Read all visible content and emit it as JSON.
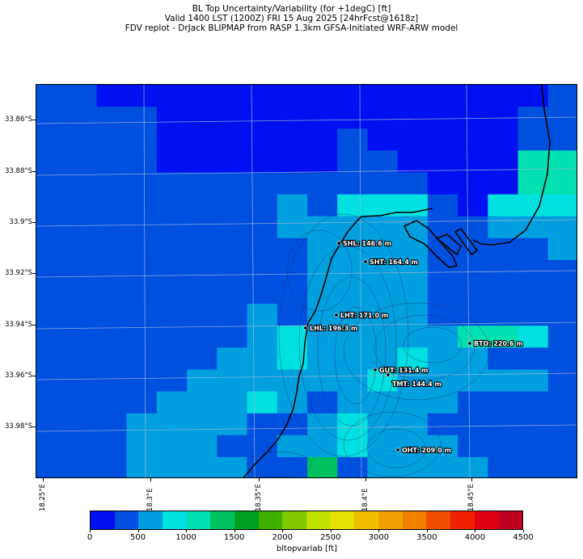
{
  "title": {
    "line1": "BL Top Uncertainty/Variability (for +1degC) [ft]",
    "line2": "Valid 1400 LST (1200Z) FRI 15 Aug 2025 [24hrFcst@1618z]",
    "line3": "FDV replot - DrJack BLIPMAP from RASP 1.3km GFSA-Initiated WRF-ARW model"
  },
  "map": {
    "lat_labels": [
      "33.86°S",
      "33.88°S",
      "33.9°S",
      "33.92°S",
      "33.94°S",
      "33.96°S",
      "33.98°S"
    ],
    "lon_labels": [
      "18.25°E",
      "18.3°E",
      "18.35°E",
      "18.4°E",
      "18.45°E"
    ],
    "locations": [
      {
        "label": "SHL: 146.6 m"
      },
      {
        "label": "SHT: 164.4 m"
      },
      {
        "label": "LHT: 171.0 m"
      },
      {
        "label": "LHL: 196.3 m"
      },
      {
        "label": "BTO: 220.6 m"
      },
      {
        "label": "GUT: 131.4 m"
      },
      {
        "label": "TMT: 144.4 m"
      },
      {
        "label": "OHT: 209.0 m"
      }
    ],
    "grid_ft": [
      [
        250,
        250,
        0,
        0,
        0,
        0,
        0,
        0,
        0,
        0,
        0,
        0,
        0,
        0,
        0,
        0,
        0,
        250
      ],
      [
        250,
        250,
        250,
        250,
        0,
        0,
        0,
        0,
        0,
        0,
        0,
        0,
        0,
        0,
        0,
        0,
        250,
        250
      ],
      [
        250,
        250,
        250,
        250,
        0,
        0,
        0,
        0,
        0,
        0,
        250,
        0,
        0,
        0,
        0,
        0,
        250,
        250
      ],
      [
        250,
        250,
        250,
        250,
        0,
        0,
        0,
        0,
        0,
        0,
        250,
        250,
        0,
        0,
        0,
        0,
        1000,
        1000
      ],
      [
        250,
        250,
        250,
        250,
        250,
        250,
        250,
        250,
        250,
        250,
        250,
        250,
        250,
        0,
        0,
        0,
        1000,
        1000
      ],
      [
        250,
        250,
        250,
        250,
        250,
        250,
        250,
        250,
        500,
        250,
        750,
        750,
        750,
        250,
        0,
        750,
        750,
        750
      ],
      [
        250,
        250,
        250,
        250,
        250,
        250,
        250,
        250,
        500,
        500,
        500,
        500,
        500,
        250,
        250,
        500,
        500,
        500
      ],
      [
        250,
        250,
        250,
        250,
        250,
        250,
        250,
        250,
        250,
        500,
        500,
        500,
        500,
        250,
        250,
        250,
        250,
        500
      ],
      [
        250,
        250,
        250,
        250,
        250,
        250,
        250,
        250,
        250,
        500,
        500,
        500,
        500,
        250,
        250,
        250,
        250,
        250
      ],
      [
        250,
        250,
        250,
        250,
        250,
        250,
        250,
        250,
        250,
        500,
        500,
        500,
        500,
        250,
        250,
        250,
        250,
        250
      ],
      [
        250,
        250,
        250,
        250,
        250,
        250,
        250,
        500,
        250,
        500,
        500,
        500,
        500,
        250,
        250,
        250,
        250,
        250
      ],
      [
        250,
        250,
        250,
        250,
        250,
        250,
        250,
        500,
        750,
        500,
        500,
        500,
        500,
        500,
        1000,
        1000,
        750,
        250
      ],
      [
        250,
        250,
        250,
        250,
        250,
        250,
        500,
        500,
        750,
        500,
        500,
        500,
        750,
        500,
        500,
        250,
        250,
        250
      ],
      [
        250,
        250,
        250,
        250,
        250,
        500,
        500,
        500,
        500,
        500,
        500,
        750,
        500,
        500,
        500,
        500,
        500,
        250
      ],
      [
        250,
        250,
        250,
        250,
        500,
        500,
        500,
        750,
        500,
        250,
        500,
        500,
        500,
        500,
        250,
        250,
        250,
        250
      ],
      [
        250,
        250,
        250,
        500,
        500,
        500,
        500,
        250,
        250,
        500,
        750,
        500,
        500,
        250,
        250,
        250,
        250,
        250
      ],
      [
        250,
        250,
        250,
        500,
        500,
        500,
        250,
        250,
        500,
        500,
        750,
        500,
        500,
        500,
        250,
        250,
        250,
        250
      ],
      [
        250,
        250,
        250,
        500,
        500,
        500,
        500,
        250,
        250,
        1250,
        250,
        500,
        500,
        500,
        500,
        250,
        250,
        250
      ]
    ]
  },
  "colorbar": {
    "title": "bltopvariab [ft]",
    "tick_labels": [
      "0",
      "500",
      "1000",
      "1500",
      "2000",
      "2500",
      "3000",
      "3500",
      "4000",
      "4500"
    ],
    "colors": [
      "#0010f0",
      "#0050e0",
      "#00a0e0",
      "#00e0e0",
      "#00e0b0",
      "#00c060",
      "#00a020",
      "#40b000",
      "#80c800",
      "#c0e000",
      "#e8e000",
      "#f0c000",
      "#f0a000",
      "#f08000",
      "#f05000",
      "#f02000",
      "#e00010",
      "#c00020"
    ]
  }
}
